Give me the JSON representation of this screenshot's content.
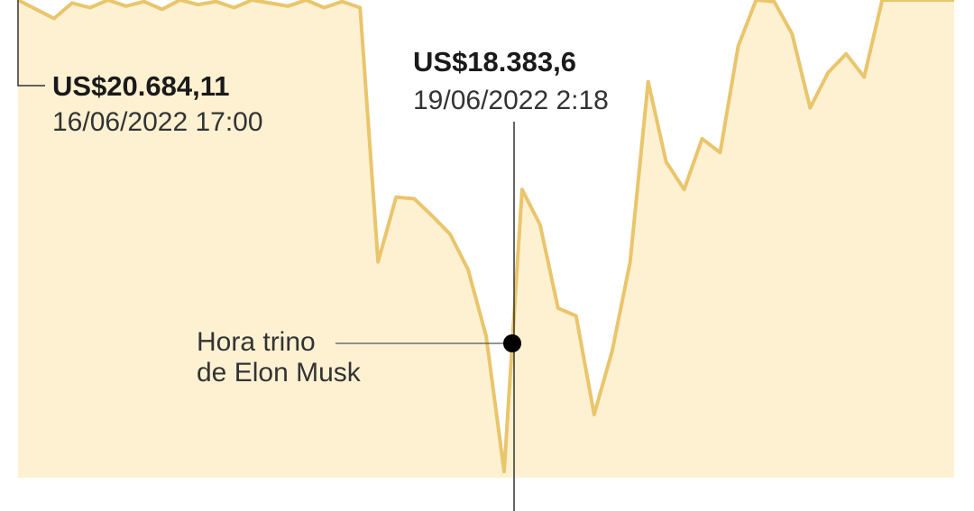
{
  "chart_data": {
    "type": "area",
    "values": [
      20700,
      20640,
      20580,
      20680,
      20650,
      20700,
      20660,
      20690,
      20640,
      20700,
      20670,
      20690,
      20650,
      20700,
      20680,
      20660,
      20700,
      20650,
      20690,
      20650,
      19000,
      19420,
      19410,
      19300,
      19180,
      18950,
      18520,
      17640,
      19470,
      19240,
      18700,
      18650,
      18010,
      18420,
      19000,
      20170,
      19650,
      19470,
      19800,
      19710,
      20400,
      20700,
      20690,
      20480,
      20000,
      20230,
      20350,
      20200,
      20700,
      20700,
      20700,
      20700,
      20700
    ],
    "color": "#e9c56c",
    "fill": "#fdf1d2",
    "ylim": [
      17600,
      20700
    ],
    "annotations": [
      {
        "value": "US$20.684,11",
        "date": "16/06/2022 17:00"
      },
      {
        "value": "US$18.383,6",
        "date": "19/06/2022 2:18"
      },
      {
        "label": [
          "Hora trino",
          "de Elon Musk"
        ]
      }
    ]
  }
}
